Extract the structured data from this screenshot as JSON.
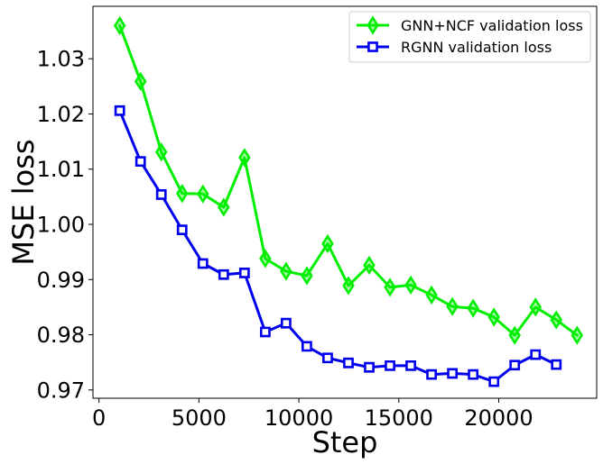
{
  "chart_data": {
    "type": "line",
    "title": "",
    "xlabel": "Step",
    "ylabel": "MSE loss",
    "xlim": [
      -300,
      24900
    ],
    "ylim": [
      0.9685,
      1.0395
    ],
    "xticks": [
      0,
      5000,
      10000,
      15000,
      20000
    ],
    "xtick_labels": [
      "0",
      "5000",
      "10000",
      "15000",
      "20000"
    ],
    "yticks": [
      0.97,
      0.98,
      0.99,
      1.0,
      1.01,
      1.02,
      1.03
    ],
    "ytick_labels": [
      "0.97",
      "0.98",
      "0.99",
      "1.00",
      "1.01",
      "1.02",
      "1.03"
    ],
    "grid": false,
    "legend_position": "top-right",
    "series": [
      {
        "name": "GNN+NCF validation loss",
        "color": "#00ee00",
        "marker": "diamond",
        "x": [
          1040,
          2080,
          3120,
          4160,
          5200,
          6240,
          7280,
          8320,
          9360,
          10400,
          11440,
          12480,
          13520,
          14560,
          15600,
          16640,
          17680,
          18720,
          19760,
          20800,
          21840,
          22880,
          23920
        ],
        "y": [
          1.036,
          1.0259,
          1.0131,
          1.0056,
          1.0055,
          1.0031,
          1.0121,
          0.9938,
          0.9915,
          0.9907,
          0.9965,
          0.9889,
          0.9926,
          0.9886,
          0.989,
          0.9872,
          0.9851,
          0.9848,
          0.9832,
          0.9799,
          0.985,
          0.9827,
          0.9799
        ]
      },
      {
        "name": "RGNN validation loss",
        "color": "#0000ee",
        "marker": "square",
        "x": [
          1040,
          2080,
          3120,
          4160,
          5200,
          6240,
          7280,
          8320,
          9360,
          10400,
          11440,
          12480,
          13520,
          14560,
          15600,
          16640,
          17680,
          18720,
          19760,
          20800,
          21840,
          22880
        ],
        "y": [
          1.0206,
          1.0114,
          1.0054,
          0.999,
          0.9929,
          0.9909,
          0.9912,
          0.9805,
          0.9821,
          0.9779,
          0.9758,
          0.9749,
          0.9741,
          0.9744,
          0.9744,
          0.9728,
          0.973,
          0.9728,
          0.9715,
          0.9745,
          0.9764,
          0.9746
        ]
      }
    ]
  }
}
